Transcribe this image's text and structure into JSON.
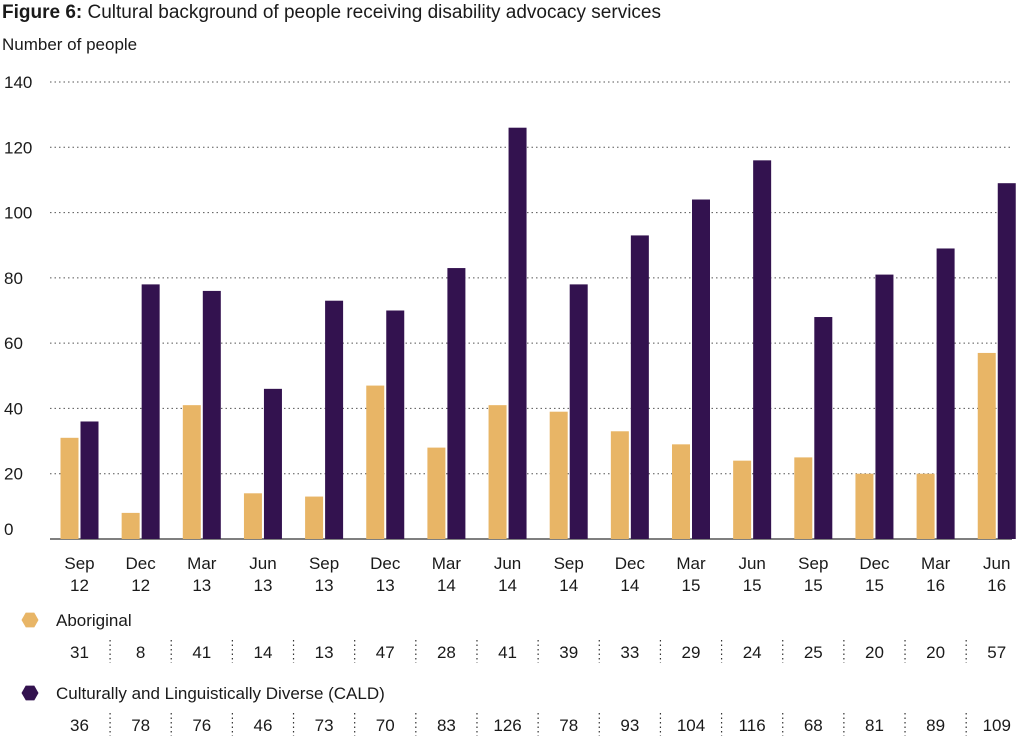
{
  "figure_label": "Figure 6:",
  "figure_title": "Cultural background of people receiving disability advocacy services",
  "chart_data": {
    "type": "bar",
    "title": "Figure 6: Cultural background of people receiving disability advocacy services",
    "ylabel": "Number of people",
    "xlabel": "",
    "ylim": [
      0,
      140
    ],
    "yticks": [
      0,
      20,
      40,
      60,
      80,
      100,
      120,
      140
    ],
    "grid": true,
    "categories": [
      [
        "Sep",
        "12"
      ],
      [
        "Dec",
        "12"
      ],
      [
        "Mar",
        "13"
      ],
      [
        "Jun",
        "13"
      ],
      [
        "Sep",
        "13"
      ],
      [
        "Dec",
        "13"
      ],
      [
        "Mar",
        "14"
      ],
      [
        "Jun",
        "14"
      ],
      [
        "Sep",
        "14"
      ],
      [
        "Dec",
        "14"
      ],
      [
        "Mar",
        "15"
      ],
      [
        "Jun",
        "15"
      ],
      [
        "Sep",
        "15"
      ],
      [
        "Dec",
        "15"
      ],
      [
        "Mar",
        "16"
      ],
      [
        "Jun",
        "16"
      ]
    ],
    "series": [
      {
        "name": "Aboriginal",
        "color": "#e8b566",
        "values": [
          31,
          8,
          41,
          14,
          13,
          47,
          28,
          41,
          39,
          33,
          29,
          24,
          25,
          20,
          20,
          57
        ]
      },
      {
        "name": "Culturally and Linguistically Diverse (CALD)",
        "color": "#33124f",
        "values": [
          36,
          78,
          76,
          46,
          73,
          70,
          83,
          126,
          78,
          93,
          104,
          116,
          68,
          81,
          89,
          109
        ]
      }
    ],
    "legend": "bottom-table"
  }
}
